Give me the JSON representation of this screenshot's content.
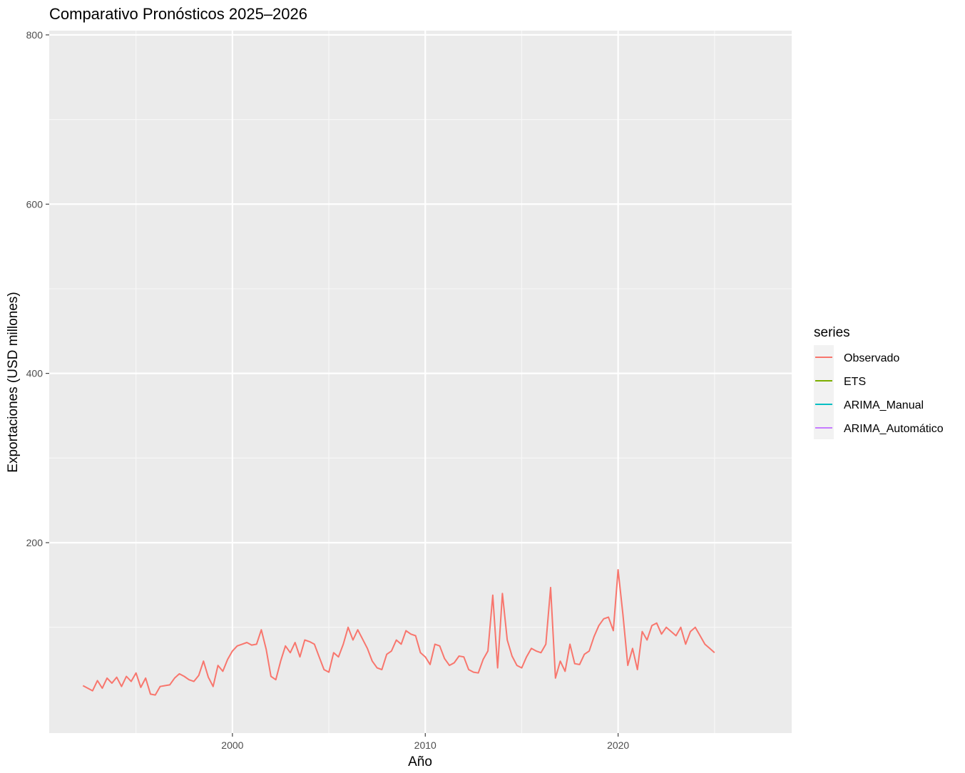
{
  "chart_data": {
    "type": "line",
    "title": "Comparativo Pronósticos 2025–2026",
    "xlabel": "Año",
    "ylabel": "Exportaciones (USD millones)",
    "xlim": [
      1990.5,
      2029.0
    ],
    "ylim": [
      -25,
      805
    ],
    "x_ticks": [
      2000,
      2010,
      2020
    ],
    "y_ticks": [
      200,
      400,
      600,
      800
    ],
    "grid": true,
    "legend": {
      "title": "series",
      "position": "right"
    },
    "series": [
      {
        "name": "Observado",
        "color": "#F8766D",
        "points": [
          [
            1992.25,
            31
          ],
          [
            1992.5,
            28
          ],
          [
            1992.75,
            25
          ],
          [
            1993.0,
            37
          ],
          [
            1993.25,
            28
          ],
          [
            1993.5,
            40
          ],
          [
            1993.75,
            34
          ],
          [
            1994.0,
            41
          ],
          [
            1994.25,
            30
          ],
          [
            1994.5,
            42
          ],
          [
            1994.75,
            36
          ],
          [
            1995.0,
            46
          ],
          [
            1995.25,
            29
          ],
          [
            1995.5,
            40
          ],
          [
            1995.75,
            21
          ],
          [
            1996.0,
            20
          ],
          [
            1996.25,
            30
          ],
          [
            1996.5,
            31
          ],
          [
            1996.75,
            32
          ],
          [
            1997.0,
            40
          ],
          [
            1997.25,
            45
          ],
          [
            1997.5,
            42
          ],
          [
            1997.75,
            38
          ],
          [
            1998.0,
            36
          ],
          [
            1998.25,
            43
          ],
          [
            1998.5,
            60
          ],
          [
            1998.75,
            41
          ],
          [
            1999.0,
            30
          ],
          [
            1999.25,
            55
          ],
          [
            1999.5,
            48
          ],
          [
            1999.75,
            62
          ],
          [
            2000.0,
            72
          ],
          [
            2000.25,
            78
          ],
          [
            2000.5,
            80
          ],
          [
            2000.75,
            82
          ],
          [
            2001.0,
            79
          ],
          [
            2001.25,
            80
          ],
          [
            2001.5,
            97
          ],
          [
            2001.75,
            74
          ],
          [
            2002.0,
            42
          ],
          [
            2002.25,
            38
          ],
          [
            2002.5,
            60
          ],
          [
            2002.75,
            78
          ],
          [
            2003.0,
            70
          ],
          [
            2003.25,
            82
          ],
          [
            2003.5,
            65
          ],
          [
            2003.75,
            85
          ],
          [
            2004.0,
            83
          ],
          [
            2004.25,
            80
          ],
          [
            2004.5,
            65
          ],
          [
            2004.75,
            50
          ],
          [
            2005.0,
            47
          ],
          [
            2005.25,
            70
          ],
          [
            2005.5,
            65
          ],
          [
            2005.75,
            80
          ],
          [
            2006.0,
            100
          ],
          [
            2006.25,
            85
          ],
          [
            2006.5,
            97
          ],
          [
            2006.75,
            86
          ],
          [
            2007.0,
            75
          ],
          [
            2007.25,
            60
          ],
          [
            2007.5,
            52
          ],
          [
            2007.75,
            50
          ],
          [
            2008.0,
            68
          ],
          [
            2008.25,
            72
          ],
          [
            2008.5,
            85
          ],
          [
            2008.75,
            80
          ],
          [
            2009.0,
            96
          ],
          [
            2009.25,
            92
          ],
          [
            2009.5,
            90
          ],
          [
            2009.75,
            70
          ],
          [
            2010.0,
            65
          ],
          [
            2010.25,
            56
          ],
          [
            2010.5,
            80
          ],
          [
            2010.75,
            78
          ],
          [
            2011.0,
            63
          ],
          [
            2011.25,
            55
          ],
          [
            2011.5,
            58
          ],
          [
            2011.75,
            66
          ],
          [
            2012.0,
            65
          ],
          [
            2012.25,
            50
          ],
          [
            2012.5,
            47
          ],
          [
            2012.75,
            46
          ],
          [
            2013.0,
            62
          ],
          [
            2013.25,
            72
          ],
          [
            2013.5,
            138
          ],
          [
            2013.75,
            52
          ],
          [
            2014.0,
            140
          ],
          [
            2014.25,
            85
          ],
          [
            2014.5,
            66
          ],
          [
            2014.75,
            55
          ],
          [
            2015.0,
            52
          ],
          [
            2015.25,
            65
          ],
          [
            2015.5,
            75
          ],
          [
            2015.75,
            72
          ],
          [
            2016.0,
            70
          ],
          [
            2016.25,
            80
          ],
          [
            2016.5,
            147
          ],
          [
            2016.75,
            40
          ],
          [
            2017.0,
            60
          ],
          [
            2017.25,
            48
          ],
          [
            2017.5,
            80
          ],
          [
            2017.75,
            57
          ],
          [
            2018.0,
            56
          ],
          [
            2018.25,
            68
          ],
          [
            2018.5,
            72
          ],
          [
            2018.75,
            89
          ],
          [
            2019.0,
            102
          ],
          [
            2019.25,
            110
          ],
          [
            2019.5,
            112
          ],
          [
            2019.75,
            96
          ],
          [
            2020.0,
            168
          ],
          [
            2020.25,
            115
          ],
          [
            2020.5,
            55
          ],
          [
            2020.75,
            75
          ],
          [
            2021.0,
            50
          ],
          [
            2021.25,
            95
          ],
          [
            2021.5,
            85
          ],
          [
            2021.75,
            102
          ],
          [
            2022.0,
            105
          ],
          [
            2022.25,
            92
          ],
          [
            2022.5,
            100
          ],
          [
            2022.75,
            95
          ],
          [
            2023.0,
            90
          ],
          [
            2023.25,
            100
          ],
          [
            2023.5,
            80
          ],
          [
            2023.75,
            95
          ],
          [
            2024.0,
            100
          ],
          [
            2024.25,
            90
          ],
          [
            2024.5,
            80
          ],
          [
            2024.75,
            75
          ],
          [
            2025.0,
            70
          ]
        ]
      },
      {
        "name": "ETS",
        "color": "#7CAE00",
        "points": []
      },
      {
        "name": "ARIMA_Manual",
        "color": "#00BFC4",
        "points": []
      },
      {
        "name": "ARIMA_Automático",
        "color": "#C77CFF",
        "points": []
      }
    ]
  }
}
